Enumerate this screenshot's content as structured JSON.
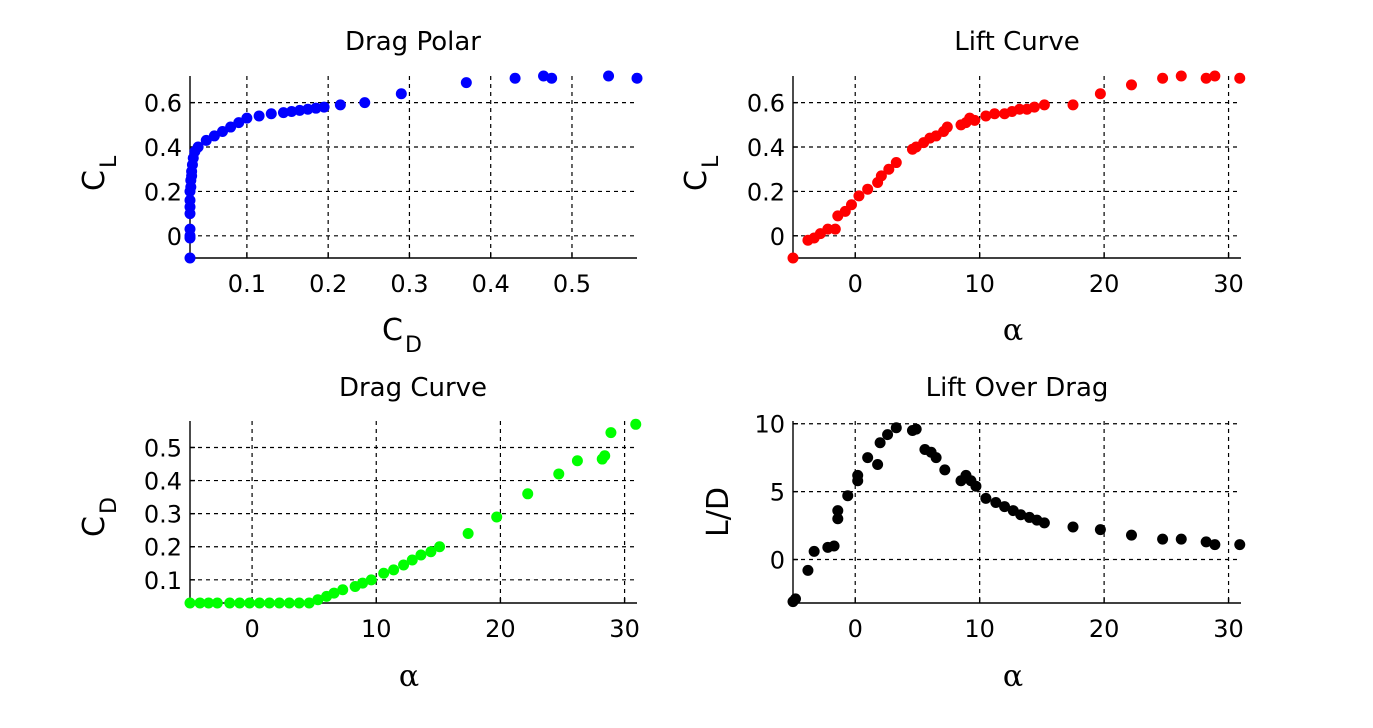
{
  "chart_data": [
    {
      "id": "drag_polar",
      "type": "scatter",
      "title": "Drag Polar",
      "xlabel": "C",
      "xlabel_sub": "D",
      "ylabel": "C",
      "ylabel_sub": "L",
      "xlim": [
        0.03,
        0.58
      ],
      "ylim": [
        -0.1,
        0.72
      ],
      "xticks": [
        0.1,
        0.2,
        0.3,
        0.4,
        0.5
      ],
      "xtick_labels": [
        "0.1",
        "0.2",
        "0.3",
        "0.4",
        "0.5"
      ],
      "yticks": [
        0,
        0.2,
        0.4,
        0.6
      ],
      "ytick_labels": [
        "0",
        "0.2",
        "0.4",
        "0.6"
      ],
      "grid": true,
      "color": "#0000ff",
      "x": [
        0.03,
        0.03,
        0.03,
        0.03,
        0.03,
        0.03,
        0.03,
        0.03,
        0.031,
        0.031,
        0.032,
        0.032,
        0.033,
        0.034,
        0.036,
        0.04,
        0.05,
        0.06,
        0.07,
        0.08,
        0.09,
        0.1,
        0.115,
        0.13,
        0.145,
        0.155,
        0.165,
        0.175,
        0.185,
        0.195,
        0.215,
        0.245,
        0.29,
        0.37,
        0.43,
        0.465,
        0.475,
        0.545,
        0.58
      ],
      "y": [
        -0.1,
        -0.01,
        0.0,
        0.03,
        0.1,
        0.13,
        0.16,
        0.2,
        0.22,
        0.25,
        0.27,
        0.29,
        0.32,
        0.35,
        0.38,
        0.4,
        0.43,
        0.45,
        0.47,
        0.49,
        0.51,
        0.53,
        0.54,
        0.55,
        0.555,
        0.56,
        0.565,
        0.57,
        0.575,
        0.58,
        0.59,
        0.6,
        0.64,
        0.69,
        0.71,
        0.72,
        0.71,
        0.72,
        0.71
      ]
    },
    {
      "id": "lift_curve",
      "type": "scatter",
      "title": "Lift Curve",
      "xlabel": "α",
      "ylabel": "C",
      "ylabel_sub": "L",
      "xlim": [
        -5,
        31
      ],
      "ylim": [
        -0.1,
        0.72
      ],
      "xticks": [
        0,
        10,
        20,
        30
      ],
      "xtick_labels": [
        "0",
        "10",
        "20",
        "30"
      ],
      "yticks": [
        0,
        0.2,
        0.4,
        0.6
      ],
      "ytick_labels": [
        "0",
        "0.2",
        "0.4",
        "0.6"
      ],
      "grid": true,
      "color": "#ff0000",
      "x": [
        -5,
        -3.8,
        -3.3,
        -2.8,
        -2.2,
        -1.6,
        -1.4,
        -0.8,
        -0.3,
        0.3,
        1.0,
        1.8,
        2.1,
        2.7,
        3.3,
        4.6,
        4.9,
        5.5,
        6.0,
        6.5,
        7.1,
        7.4,
        8.5,
        8.9,
        9.2,
        9.6,
        10.5,
        11.2,
        12.0,
        12.6,
        13.2,
        13.8,
        14.4,
        15.2,
        17.5,
        19.7,
        22.2,
        24.7,
        26.2,
        28.2,
        28.9,
        30.9
      ],
      "y": [
        -0.1,
        -0.02,
        -0.01,
        0.01,
        0.03,
        0.03,
        0.09,
        0.11,
        0.14,
        0.18,
        0.21,
        0.24,
        0.27,
        0.3,
        0.33,
        0.39,
        0.4,
        0.42,
        0.44,
        0.45,
        0.47,
        0.49,
        0.5,
        0.51,
        0.53,
        0.52,
        0.54,
        0.55,
        0.55,
        0.56,
        0.57,
        0.57,
        0.58,
        0.59,
        0.59,
        0.64,
        0.68,
        0.71,
        0.72,
        0.71,
        0.72,
        0.71
      ]
    },
    {
      "id": "drag_curve",
      "type": "scatter",
      "title": "Drag Curve",
      "xlabel": "α",
      "ylabel": "C",
      "ylabel_sub": "D",
      "xlim": [
        -5,
        31
      ],
      "ylim": [
        0.03,
        0.58
      ],
      "xticks": [
        0,
        10,
        20,
        30
      ],
      "xtick_labels": [
        "0",
        "10",
        "20",
        "30"
      ],
      "yticks": [
        0.1,
        0.2,
        0.3,
        0.4,
        0.5
      ],
      "ytick_labels": [
        "0.1",
        "0.2",
        "0.3",
        "0.4",
        "0.5"
      ],
      "grid": true,
      "color": "#00ff00",
      "x": [
        -5,
        -4.2,
        -3.5,
        -2.8,
        -1.8,
        -1.0,
        -0.2,
        0.6,
        1.4,
        2.2,
        3.0,
        3.8,
        4.6,
        5.3,
        6.0,
        6.6,
        7.3,
        8.3,
        8.9,
        9.6,
        10.6,
        11.4,
        12.2,
        12.9,
        13.6,
        14.4,
        15.1,
        17.4,
        19.7,
        22.2,
        24.7,
        26.2,
        28.2,
        28.4,
        28.9,
        30.9
      ],
      "y": [
        0.03,
        0.03,
        0.03,
        0.03,
        0.03,
        0.03,
        0.03,
        0.03,
        0.03,
        0.03,
        0.03,
        0.03,
        0.03,
        0.04,
        0.05,
        0.06,
        0.07,
        0.08,
        0.09,
        0.1,
        0.12,
        0.13,
        0.145,
        0.16,
        0.175,
        0.185,
        0.2,
        0.24,
        0.29,
        0.36,
        0.42,
        0.46,
        0.465,
        0.475,
        0.545,
        0.57
      ]
    },
    {
      "id": "lift_over_drag",
      "type": "scatter",
      "title": "Lift Over Drag",
      "xlabel": "α",
      "ylabel": "L/D",
      "xlim": [
        -5,
        31
      ],
      "ylim": [
        -3.2,
        10.2
      ],
      "xticks": [
        0,
        10,
        20,
        30
      ],
      "xtick_labels": [
        "0",
        "10",
        "20",
        "30"
      ],
      "yticks": [
        0,
        5,
        10
      ],
      "ytick_labels": [
        "0",
        "5",
        "10"
      ],
      "grid": true,
      "color": "#000000",
      "x": [
        -5,
        -4.8,
        -3.8,
        -3.3,
        -2.2,
        -1.7,
        -1.4,
        -1.4,
        -0.6,
        0.2,
        0.2,
        1.0,
        1.8,
        2.0,
        2.6,
        3.3,
        4.6,
        4.9,
        5.6,
        6.1,
        6.5,
        7.2,
        8.5,
        8.9,
        9.3,
        9.7,
        10.5,
        11.3,
        12.0,
        12.7,
        13.3,
        14.0,
        14.6,
        15.2,
        17.5,
        19.7,
        22.2,
        24.7,
        26.2,
        28.2,
        28.9,
        30.9
      ],
      "y": [
        -3.1,
        -2.9,
        -0.8,
        0.6,
        0.9,
        1.0,
        3.0,
        3.6,
        4.7,
        5.8,
        6.2,
        7.5,
        7.0,
        8.6,
        9.2,
        9.7,
        9.5,
        9.6,
        8.1,
        7.9,
        7.5,
        6.6,
        5.8,
        6.2,
        5.8,
        5.4,
        4.5,
        4.2,
        3.9,
        3.6,
        3.3,
        3.1,
        2.9,
        2.7,
        2.4,
        2.2,
        1.8,
        1.5,
        1.5,
        1.3,
        1.1,
        1.1
      ]
    }
  ]
}
